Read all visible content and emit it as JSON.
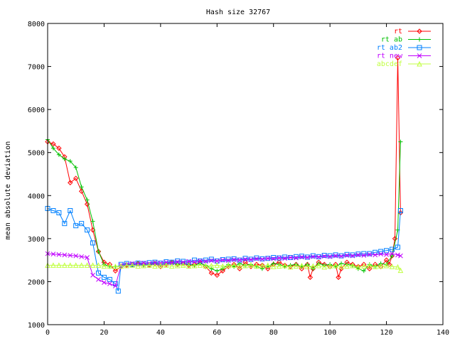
{
  "chart_data": {
    "type": "line",
    "title": "Hash size 32767",
    "xlabel": "",
    "ylabel": "mean absolute deviation",
    "xlim": [
      0,
      140
    ],
    "ylim": [
      1000,
      8000
    ],
    "xticks": [
      0,
      20,
      40,
      60,
      80,
      100,
      120,
      140
    ],
    "yticks": [
      1000,
      2000,
      3000,
      4000,
      5000,
      6000,
      7000,
      8000
    ],
    "grid": false,
    "legend_position": "top-right",
    "series": [
      {
        "name": "rt",
        "color": "#ff0000",
        "marker": "diamond",
        "x": [
          0,
          2,
          4,
          6,
          8,
          10,
          12,
          14,
          16,
          18,
          20,
          22,
          24,
          26,
          28,
          30,
          32,
          34,
          36,
          38,
          40,
          42,
          44,
          46,
          48,
          50,
          52,
          54,
          56,
          58,
          60,
          62,
          64,
          66,
          68,
          70,
          72,
          74,
          76,
          78,
          80,
          82,
          84,
          86,
          88,
          90,
          92,
          93,
          94,
          96,
          98,
          100,
          102,
          103,
          104,
          106,
          108,
          110,
          112,
          114,
          116,
          118,
          120,
          121,
          122,
          123,
          124,
          125
        ],
        "y": [
          5250,
          5200,
          5100,
          4900,
          4300,
          4400,
          4100,
          3800,
          3200,
          2700,
          2450,
          2400,
          2250,
          2350,
          2380,
          2400,
          2420,
          2400,
          2380,
          2420,
          2350,
          2400,
          2450,
          2400,
          2420,
          2380,
          2400,
          2450,
          2350,
          2200,
          2150,
          2250,
          2350,
          2400,
          2300,
          2450,
          2350,
          2400,
          2380,
          2300,
          2400,
          2450,
          2380,
          2350,
          2400,
          2300,
          2400,
          2100,
          2300,
          2450,
          2400,
          2350,
          2400,
          2100,
          2300,
          2450,
          2400,
          2350,
          2400,
          2300,
          2400,
          2350,
          2500,
          2400,
          2600,
          3000,
          7200,
          3600
        ]
      },
      {
        "name": "rt ab",
        "color": "#00c000",
        "marker": "plus",
        "x": [
          0,
          2,
          4,
          6,
          8,
          10,
          12,
          14,
          16,
          18,
          20,
          22,
          24,
          26,
          28,
          30,
          32,
          34,
          36,
          38,
          40,
          42,
          44,
          46,
          48,
          50,
          52,
          54,
          56,
          58,
          60,
          62,
          64,
          66,
          68,
          70,
          72,
          74,
          76,
          78,
          80,
          82,
          84,
          86,
          88,
          90,
          92,
          94,
          96,
          98,
          100,
          102,
          104,
          106,
          108,
          110,
          112,
          114,
          116,
          118,
          120,
          122,
          124,
          125
        ],
        "y": [
          5300,
          5100,
          4950,
          4850,
          4800,
          4650,
          4200,
          3900,
          3400,
          2700,
          2400,
          2350,
          2350,
          2370,
          2400,
          2380,
          2420,
          2380,
          2400,
          2430,
          2400,
          2420,
          2450,
          2400,
          2420,
          2400,
          2380,
          2420,
          2380,
          2300,
          2250,
          2300,
          2400,
          2350,
          2420,
          2380,
          2400,
          2350,
          2300,
          2350,
          2420,
          2400,
          2350,
          2380,
          2400,
          2350,
          2400,
          2300,
          2420,
          2380,
          2400,
          2350,
          2420,
          2400,
          2380,
          2300,
          2250,
          2400,
          2350,
          2420,
          2400,
          2600,
          3200,
          5250
        ]
      },
      {
        "name": "rt ab2",
        "color": "#0080ff",
        "marker": "square",
        "x": [
          0,
          2,
          4,
          6,
          8,
          10,
          12,
          14,
          16,
          18,
          20,
          22,
          24,
          25,
          26,
          28,
          30,
          32,
          34,
          36,
          38,
          40,
          42,
          44,
          46,
          48,
          50,
          52,
          54,
          56,
          58,
          60,
          62,
          64,
          66,
          68,
          70,
          72,
          74,
          76,
          78,
          80,
          82,
          84,
          86,
          88,
          90,
          92,
          94,
          96,
          98,
          100,
          102,
          104,
          106,
          108,
          110,
          112,
          114,
          116,
          118,
          120,
          122,
          124,
          125
        ],
        "y": [
          3700,
          3650,
          3600,
          3350,
          3650,
          3300,
          3350,
          3200,
          2900,
          2200,
          2100,
          2050,
          1950,
          1780,
          2400,
          2420,
          2400,
          2430,
          2420,
          2440,
          2450,
          2430,
          2460,
          2450,
          2480,
          2470,
          2450,
          2500,
          2480,
          2500,
          2520,
          2480,
          2510,
          2520,
          2530,
          2500,
          2540,
          2520,
          2550,
          2530,
          2540,
          2560,
          2550,
          2570,
          2560,
          2580,
          2590,
          2570,
          2600,
          2580,
          2610,
          2600,
          2620,
          2600,
          2630,
          2620,
          2640,
          2650,
          2650,
          2680,
          2700,
          2720,
          2750,
          2800,
          3650
        ]
      },
      {
        "name": "rt new",
        "color": "#c000ff",
        "marker": "x",
        "x": [
          0,
          2,
          4,
          6,
          8,
          10,
          12,
          14,
          16,
          18,
          20,
          22,
          24,
          26,
          28,
          30,
          32,
          34,
          36,
          38,
          40,
          42,
          44,
          46,
          48,
          50,
          52,
          54,
          56,
          58,
          60,
          62,
          64,
          66,
          68,
          70,
          72,
          74,
          76,
          78,
          80,
          82,
          84,
          86,
          88,
          90,
          92,
          94,
          96,
          98,
          100,
          102,
          104,
          106,
          108,
          110,
          112,
          114,
          116,
          118,
          120,
          122,
          124,
          125
        ],
        "y": [
          2650,
          2640,
          2630,
          2620,
          2610,
          2600,
          2580,
          2560,
          2150,
          2050,
          1980,
          1950,
          1900,
          2380,
          2400,
          2420,
          2410,
          2430,
          2420,
          2440,
          2430,
          2450,
          2440,
          2460,
          2450,
          2470,
          2460,
          2480,
          2470,
          2490,
          2480,
          2500,
          2490,
          2510,
          2500,
          2520,
          2510,
          2530,
          2520,
          2540,
          2530,
          2550,
          2540,
          2560,
          2550,
          2570,
          2560,
          2580,
          2570,
          2590,
          2580,
          2600,
          2590,
          2610,
          2600,
          2620,
          2610,
          2630,
          2620,
          2640,
          2630,
          2650,
          2620,
          2600
        ]
      },
      {
        "name": "abcdef",
        "color": "#c0ff40",
        "marker": "triangle",
        "x": [
          0,
          2,
          4,
          6,
          8,
          10,
          12,
          14,
          16,
          18,
          20,
          22,
          24,
          26,
          28,
          30,
          32,
          34,
          36,
          38,
          40,
          42,
          44,
          46,
          48,
          50,
          52,
          54,
          56,
          58,
          60,
          62,
          64,
          66,
          68,
          70,
          72,
          74,
          76,
          78,
          80,
          82,
          84,
          86,
          88,
          90,
          92,
          94,
          96,
          98,
          100,
          102,
          104,
          106,
          108,
          110,
          112,
          114,
          116,
          118,
          120,
          122,
          124,
          125
        ],
        "y": [
          2380,
          2380,
          2380,
          2380,
          2380,
          2380,
          2380,
          2380,
          2380,
          2380,
          2360,
          2360,
          2350,
          2360,
          2370,
          2380,
          2360,
          2370,
          2380,
          2360,
          2370,
          2380,
          2360,
          2370,
          2380,
          2360,
          2370,
          2380,
          2360,
          2370,
          2380,
          2360,
          2370,
          2380,
          2360,
          2370,
          2380,
          2360,
          2370,
          2380,
          2350,
          2360,
          2370,
          2340,
          2360,
          2370,
          2350,
          2360,
          2370,
          2340,
          2360,
          2370,
          2350,
          2360,
          2370,
          2340,
          2360,
          2370,
          2350,
          2360,
          2370,
          2350,
          2340,
          2260
        ]
      }
    ]
  }
}
